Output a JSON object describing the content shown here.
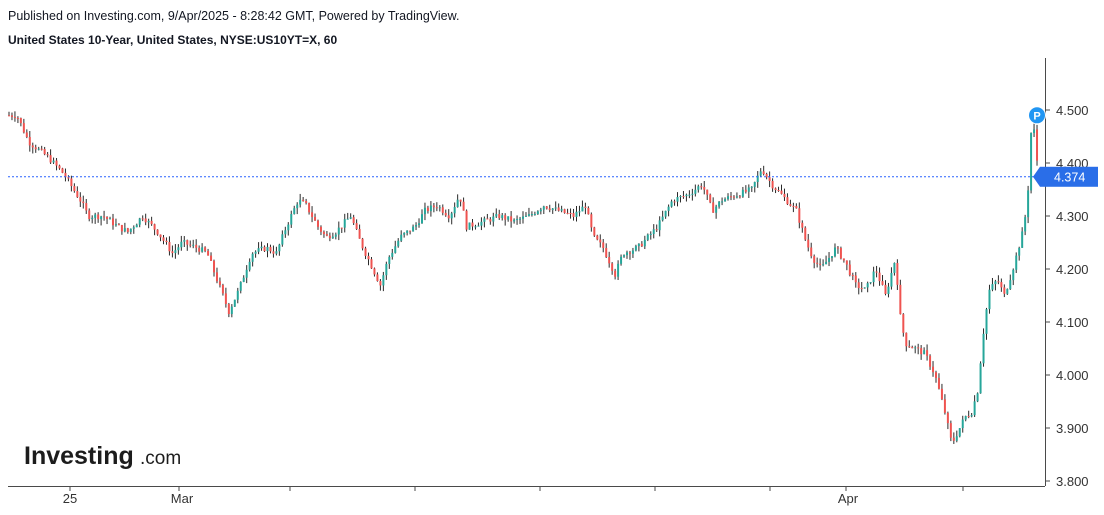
{
  "header": {
    "published": "Published on Investing.com, 9/Apr/2025 - 8:28:42 GMT, Powered by TradingView.",
    "instrument": "United States 10-Year, United States, NYSE:US10YT=X, 60"
  },
  "logo": {
    "main": "Investing",
    "suffix": ".com"
  },
  "colors": {
    "up": "#26a69a",
    "down": "#ef5350",
    "wick": "#2a2a2a",
    "last_price_line": "#2962ff",
    "label_bg": "#2a6ee8",
    "marker": "#2196f3"
  },
  "chart_data": {
    "type": "candlestick",
    "title": "",
    "y_axis": {
      "min": 3.8,
      "max": 4.5,
      "tick_labels": [
        "3.800",
        "3.900",
        "4.000",
        "4.100",
        "4.200",
        "4.300",
        "4.400",
        "4.500"
      ],
      "position": "right"
    },
    "x_axis": {
      "tick_labels": [
        "25",
        "Mar",
        "Apr"
      ]
    },
    "last_price": {
      "value": 4.374,
      "label": "4.374"
    },
    "marker": {
      "label": "P",
      "value": 4.49
    },
    "grid": false,
    "series": [
      {
        "path": [
          [
            0,
            4.49
          ],
          [
            8,
            4.49
          ],
          [
            20,
            4.44
          ],
          [
            40,
            4.41
          ],
          [
            55,
            4.38
          ],
          [
            72,
            4.33
          ],
          [
            80,
            4.3
          ],
          [
            95,
            4.3
          ],
          [
            110,
            4.28
          ],
          [
            120,
            4.27
          ],
          [
            135,
            4.3
          ],
          [
            150,
            4.27
          ],
          [
            165,
            4.23
          ],
          [
            175,
            4.25
          ],
          [
            190,
            4.24
          ],
          [
            200,
            4.23
          ],
          [
            210,
            4.18
          ],
          [
            222,
            4.12
          ],
          [
            232,
            4.16
          ],
          [
            245,
            4.23
          ],
          [
            260,
            4.24
          ],
          [
            270,
            4.23
          ],
          [
            280,
            4.28
          ],
          [
            292,
            4.33
          ],
          [
            300,
            4.32
          ],
          [
            312,
            4.28
          ],
          [
            320,
            4.26
          ],
          [
            330,
            4.27
          ],
          [
            345,
            4.3
          ],
          [
            355,
            4.25
          ],
          [
            365,
            4.21
          ],
          [
            375,
            4.17
          ],
          [
            383,
            4.22
          ],
          [
            395,
            4.26
          ],
          [
            410,
            4.28
          ],
          [
            420,
            4.31
          ],
          [
            432,
            4.32
          ],
          [
            445,
            4.3
          ],
          [
            455,
            4.34
          ],
          [
            462,
            4.28
          ],
          [
            480,
            4.29
          ],
          [
            495,
            4.3
          ],
          [
            510,
            4.29
          ],
          [
            525,
            4.3
          ],
          [
            540,
            4.32
          ],
          [
            555,
            4.31
          ],
          [
            570,
            4.3
          ],
          [
            582,
            4.32
          ],
          [
            590,
            4.26
          ],
          [
            600,
            4.24
          ],
          [
            612,
            4.19
          ],
          [
            620,
            4.23
          ],
          [
            635,
            4.24
          ],
          [
            645,
            4.26
          ],
          [
            655,
            4.28
          ],
          [
            670,
            4.33
          ],
          [
            685,
            4.34
          ],
          [
            700,
            4.36
          ],
          [
            710,
            4.31
          ],
          [
            720,
            4.33
          ],
          [
            735,
            4.34
          ],
          [
            750,
            4.35
          ],
          [
            760,
            4.39
          ],
          [
            770,
            4.36
          ],
          [
            785,
            4.33
          ],
          [
            795,
            4.31
          ],
          [
            805,
            4.25
          ],
          [
            812,
            4.22
          ],
          [
            820,
            4.2
          ],
          [
            835,
            4.24
          ],
          [
            845,
            4.21
          ],
          [
            855,
            4.17
          ],
          [
            865,
            4.16
          ],
          [
            875,
            4.2
          ],
          [
            885,
            4.15
          ],
          [
            895,
            4.22
          ],
          [
            900,
            4.11
          ],
          [
            905,
            4.06
          ],
          [
            915,
            4.05
          ],
          [
            925,
            4.04
          ],
          [
            935,
            4.0
          ],
          [
            945,
            3.93
          ],
          [
            952,
            3.87
          ],
          [
            960,
            3.9
          ],
          [
            965,
            3.92
          ],
          [
            972,
            3.93
          ],
          [
            978,
            3.97
          ],
          [
            985,
            4.1
          ],
          [
            990,
            4.16
          ],
          [
            998,
            4.18
          ],
          [
            1005,
            4.15
          ],
          [
            1012,
            4.19
          ],
          [
            1018,
            4.23
          ],
          [
            1025,
            4.28
          ],
          [
            1030,
            4.37
          ],
          [
            1033,
            4.5
          ],
          [
            1037,
            4.42
          ],
          [
            1040,
            4.374
          ]
        ]
      }
    ]
  }
}
